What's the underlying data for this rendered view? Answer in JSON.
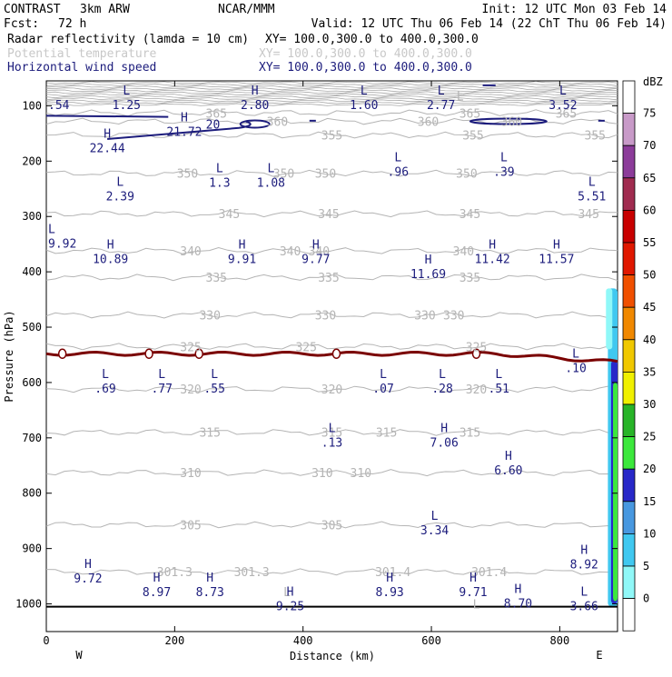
{
  "header": {
    "model": "CONTRAST",
    "config": "3km ARW",
    "agency": "NCAR/MMM",
    "init": "Init: 12 UTC Mon 03 Feb 14",
    "fcst_label": "Fcst:",
    "fcst_value": "72 h",
    "valid": "Valid: 12 UTC Thu 06 Feb 14 (22 ChT Thu 06 Feb 14)",
    "fields": [
      {
        "name": "Radar reflectivity (lamda = 10 cm)",
        "xy": "XY= 100.0,300.0 to 400.0,300.0",
        "color": "#000000"
      },
      {
        "name": "Potential temperature",
        "xy": "XY= 100.0,300.0 to 400.0,300.0",
        "color": "#c8c8c8"
      },
      {
        "name": "Horizontal wind speed",
        "xy": "XY= 100.0,300.0 to 400.0,300.0",
        "color": "#1c1c7c"
      }
    ]
  },
  "chart_data": {
    "type": "cross-section",
    "xlabel": "Distance (km)",
    "ylabel": "Pressure (hPa)",
    "xlim": [
      0,
      890
    ],
    "ylim": [
      1050,
      55
    ],
    "x_ticks": [
      "0",
      "200",
      "400",
      "600",
      "800"
    ],
    "y_ticks": [
      "100",
      "200",
      "300",
      "400",
      "500",
      "600",
      "700",
      "800",
      "900",
      "1000"
    ],
    "left_end_label": "W",
    "right_end_label": "E",
    "theta_contours": [
      {
        "value": "365",
        "p": 113,
        "labels": [
          {
            "x": 265,
            "text": "365"
          },
          {
            "x": 660,
            "text": "365"
          },
          {
            "x": 810,
            "text": "365"
          }
        ]
      },
      {
        "value": "360",
        "p": 128,
        "labels": [
          {
            "x": 360,
            "text": "360"
          },
          {
            "x": 595,
            "text": "360"
          },
          {
            "x": 725,
            "text": "360"
          }
        ]
      },
      {
        "value": "355",
        "p": 153,
        "labels": [
          {
            "x": 445,
            "text": "355"
          },
          {
            "x": 665,
            "text": "355"
          },
          {
            "x": 855,
            "text": "355"
          }
        ]
      },
      {
        "value": "350",
        "p": 222,
        "labels": [
          {
            "x": 220,
            "text": "350"
          },
          {
            "x": 370,
            "text": "350"
          },
          {
            "x": 435,
            "text": "350"
          },
          {
            "x": 655,
            "text": "350"
          }
        ]
      },
      {
        "value": "345",
        "p": 295,
        "labels": [
          {
            "x": 285,
            "text": "345"
          },
          {
            "x": 440,
            "text": "345"
          },
          {
            "x": 660,
            "text": "345"
          },
          {
            "x": 845,
            "text": "345"
          }
        ]
      },
      {
        "value": "340",
        "p": 362,
        "labels": [
          {
            "x": 225,
            "text": "340"
          },
          {
            "x": 380,
            "text": "340"
          },
          {
            "x": 425,
            "text": "340"
          },
          {
            "x": 650,
            "text": "340"
          }
        ]
      },
      {
        "value": "335",
        "p": 410,
        "labels": [
          {
            "x": 265,
            "text": "335"
          },
          {
            "x": 440,
            "text": "335"
          },
          {
            "x": 660,
            "text": "335"
          }
        ]
      },
      {
        "value": "330",
        "p": 478,
        "labels": [
          {
            "x": 255,
            "text": "330"
          },
          {
            "x": 435,
            "text": "330"
          },
          {
            "x": 590,
            "text": "330"
          },
          {
            "x": 635,
            "text": "330"
          }
        ]
      },
      {
        "value": "325",
        "p": 535,
        "labels": [
          {
            "x": 225,
            "text": "325"
          },
          {
            "x": 405,
            "text": "325"
          },
          {
            "x": 670,
            "text": "325"
          }
        ]
      },
      {
        "value": "320",
        "p": 612,
        "labels": [
          {
            "x": 225,
            "text": "320"
          },
          {
            "x": 445,
            "text": "320"
          },
          {
            "x": 670,
            "text": "320"
          }
        ]
      },
      {
        "value": "315",
        "p": 690,
        "labels": [
          {
            "x": 255,
            "text": "315"
          },
          {
            "x": 445,
            "text": "315"
          },
          {
            "x": 530,
            "text": "315"
          },
          {
            "x": 660,
            "text": "315"
          }
        ]
      },
      {
        "value": "310",
        "p": 763,
        "labels": [
          {
            "x": 225,
            "text": "310"
          },
          {
            "x": 430,
            "text": "310"
          },
          {
            "x": 490,
            "text": "310"
          }
        ]
      },
      {
        "value": "305",
        "p": 857,
        "labels": [
          {
            "x": 225,
            "text": "305"
          },
          {
            "x": 445,
            "text": "305"
          }
        ]
      },
      {
        "value": "301.3",
        "p": 942,
        "labels": [
          {
            "x": 200,
            "text": "301.3"
          },
          {
            "x": 320,
            "text": "301.3"
          },
          {
            "x": 540,
            "text": "301.4"
          },
          {
            "x": 690,
            "text": "301.4"
          }
        ]
      }
    ],
    "theta_minmax": [
      {
        "x": 645,
        "p": 82,
        "text": "L"
      },
      {
        "x": 375,
        "p": 978,
        "text": "L"
      },
      {
        "x": 670,
        "p": 1000,
        "text": "L"
      }
    ],
    "wind_jet_level_p": 548,
    "wind_markers": [
      {
        "x": 125,
        "p": 80,
        "hl": "L",
        "value": "1.25"
      },
      {
        "x": 325,
        "p": 80,
        "hl": "H",
        "value": "2.80"
      },
      {
        "x": 495,
        "p": 80,
        "hl": "L",
        "value": "1.60"
      },
      {
        "x": 615,
        "p": 80,
        "hl": "L",
        "value": "2.77"
      },
      {
        "x": 805,
        "p": 80,
        "hl": "L",
        "value": "3.52"
      },
      {
        "x": 215,
        "p": 128,
        "hl": "H",
        "value": "21.72"
      },
      {
        "x": 95,
        "p": 158,
        "hl": "H",
        "value": "22.44"
      },
      {
        "x": 270,
        "p": 220,
        "hl": "L",
        "value": "1.3"
      },
      {
        "x": 350,
        "p": 220,
        "hl": "L",
        "value": "1.08"
      },
      {
        "x": 548,
        "p": 200,
        "hl": "L",
        "value": ".96"
      },
      {
        "x": 713,
        "p": 200,
        "hl": "L",
        "value": ".39"
      },
      {
        "x": 115,
        "p": 245,
        "hl": "L",
        "value": "2.39"
      },
      {
        "x": 850,
        "p": 245,
        "hl": "L",
        "value": "5.51"
      },
      {
        "x": 100,
        "p": 358,
        "hl": "H",
        "value": "10.89"
      },
      {
        "x": 305,
        "p": 358,
        "hl": "H",
        "value": "9.91"
      },
      {
        "x": 420,
        "p": 358,
        "hl": "H",
        "value": "9.77"
      },
      {
        "x": 695,
        "p": 358,
        "hl": "H",
        "value": "11.42"
      },
      {
        "x": 795,
        "p": 358,
        "hl": "H",
        "value": "11.57"
      },
      {
        "x": 595,
        "p": 385,
        "hl": "H",
        "value": "11.69"
      },
      {
        "x": 92,
        "p": 592,
        "hl": "L",
        "value": ".69"
      },
      {
        "x": 180,
        "p": 592,
        "hl": "L",
        "value": ".77"
      },
      {
        "x": 262,
        "p": 592,
        "hl": "L",
        "value": ".55"
      },
      {
        "x": 525,
        "p": 592,
        "hl": "L",
        "value": ".07"
      },
      {
        "x": 617,
        "p": 592,
        "hl": "L",
        "value": ".28"
      },
      {
        "x": 705,
        "p": 592,
        "hl": "L",
        "value": ".51"
      },
      {
        "x": 825,
        "p": 555,
        "hl": "L",
        "value": ".10"
      },
      {
        "x": 445,
        "p": 690,
        "hl": "L",
        "value": ".13"
      },
      {
        "x": 620,
        "p": 690,
        "hl": "H",
        "value": "7.06"
      },
      {
        "x": 720,
        "p": 740,
        "hl": "H",
        "value": "6.60"
      },
      {
        "x": 605,
        "p": 848,
        "hl": "L",
        "value": "3.34"
      },
      {
        "x": 65,
        "p": 935,
        "hl": "H",
        "value": "9.72"
      },
      {
        "x": 172,
        "p": 960,
        "hl": "H",
        "value": "8.97"
      },
      {
        "x": 255,
        "p": 960,
        "hl": "H",
        "value": "8.73"
      },
      {
        "x": 535,
        "p": 960,
        "hl": "H",
        "value": "8.93"
      },
      {
        "x": 665,
        "p": 960,
        "hl": "H",
        "value": "9.71"
      },
      {
        "x": 380,
        "p": 985,
        "hl": "H",
        "value": "9.25"
      },
      {
        "x": 735,
        "p": 980,
        "hl": "H",
        "value": "8.70"
      },
      {
        "x": 838,
        "p": 910,
        "hl": "H",
        "value": "8.92"
      },
      {
        "x": 838,
        "p": 985,
        "hl": "L",
        "value": "3.66"
      },
      {
        "x": 5,
        "p": 330,
        "hl": "L",
        "value": "9.92"
      },
      {
        "x": 5,
        "p": 80,
        "hl": "",
        "value": ".54"
      }
    ],
    "wind_contour_labels": [
      {
        "x": 295,
        "p": 133,
        "text": "20"
      }
    ],
    "reflectivity_colorbar": {
      "unit": "dBZ",
      "levels": [
        "75",
        "70",
        "65",
        "60",
        "55",
        "50",
        "45",
        "40",
        "35",
        "30",
        "25",
        "20",
        "15",
        "10",
        "5",
        "0"
      ],
      "colors": [
        "#ffffff",
        "#c89ac8",
        "#8c3c9a",
        "#a02c50",
        "#c80000",
        "#e01800",
        "#f05000",
        "#f08800",
        "#f0c800",
        "#f0f000",
        "#28b428",
        "#3ce83c",
        "#2828c8",
        "#4898e0",
        "#40c8f0",
        "#90f8f8",
        "#ffffff"
      ]
    },
    "reflectivity_cells": [
      {
        "x0": 875,
        "x1": 890,
        "p_top": 430,
        "p_bot": 1005,
        "dbz": 10
      },
      {
        "x0": 880,
        "x1": 890,
        "p_top": 560,
        "p_bot": 1000,
        "dbz": 20
      },
      {
        "x0": 883,
        "x1": 890,
        "p_top": 600,
        "p_bot": 995,
        "dbz": 25
      }
    ]
  }
}
